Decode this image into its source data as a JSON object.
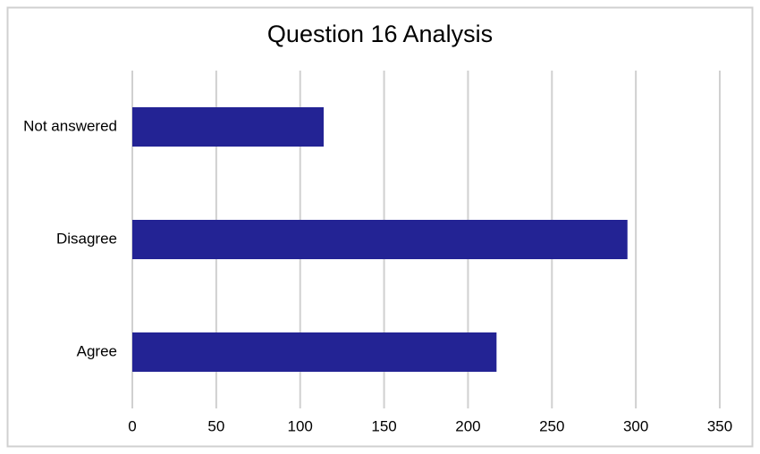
{
  "chart_data": {
    "type": "bar",
    "orientation": "horizontal",
    "title": "Question 16 Analysis",
    "categories": [
      "Agree",
      "Disagree",
      "Not answered"
    ],
    "values": [
      217,
      295,
      114
    ],
    "color": "#232394",
    "xlim": [
      0,
      350
    ],
    "xticks": [
      0,
      50,
      100,
      150,
      200,
      250,
      300,
      350
    ],
    "grid": true
  }
}
